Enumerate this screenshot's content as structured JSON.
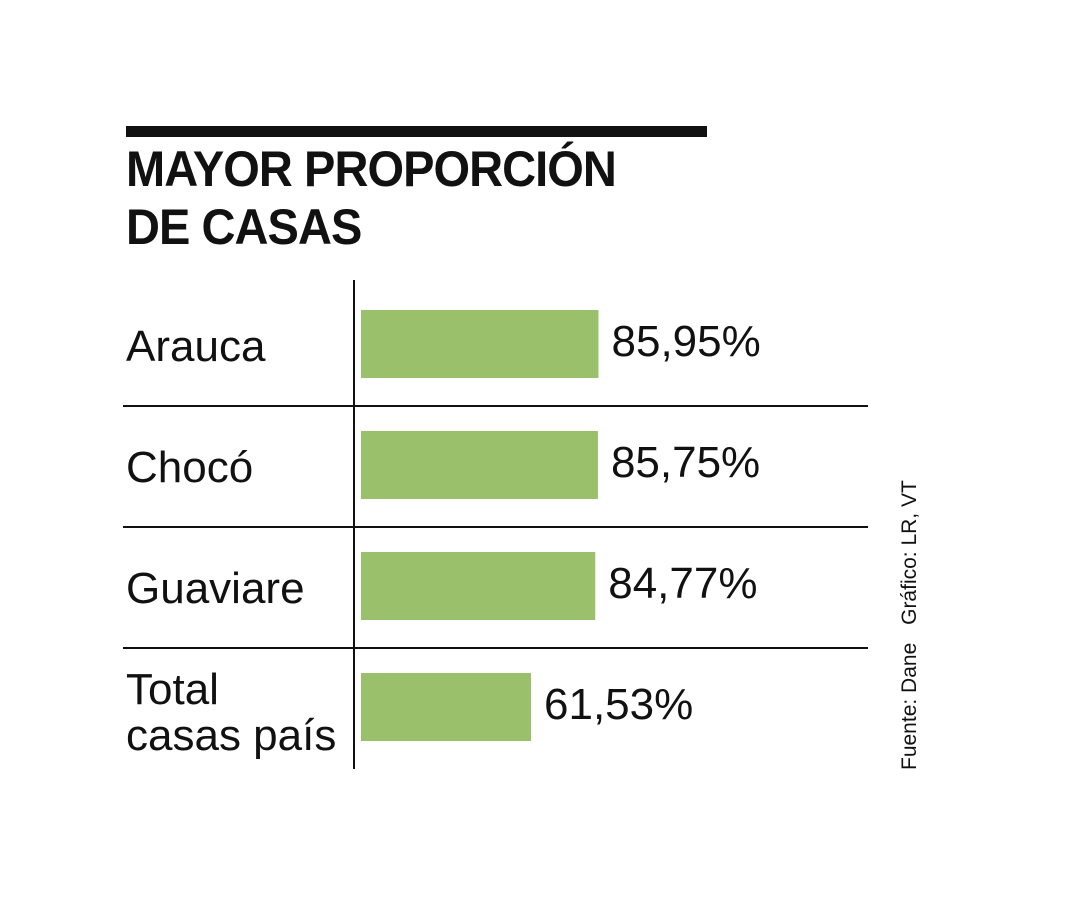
{
  "title_lines": [
    "MAYOR PROPORCIÓN",
    "DE CASAS"
  ],
  "source": {
    "fuente": "Fuente: Dane",
    "grafico": "Gráfico: LR, VT"
  },
  "chart_data": {
    "type": "bar",
    "orientation": "horizontal",
    "title": "MAYOR PROPORCIÓN DE CASAS",
    "categories": [
      [
        "Arauca"
      ],
      [
        "Chocó"
      ],
      [
        "Guaviare"
      ],
      [
        "Total",
        "casas país"
      ]
    ],
    "values": [
      85.95,
      85.75,
      84.77,
      61.53
    ],
    "value_labels": [
      "85,95%",
      "85,75%",
      "84,77%",
      "61,53%"
    ],
    "unit": "%",
    "xlim": [
      0,
      100
    ],
    "bar_color": "#9bc06b",
    "grid": false
  }
}
